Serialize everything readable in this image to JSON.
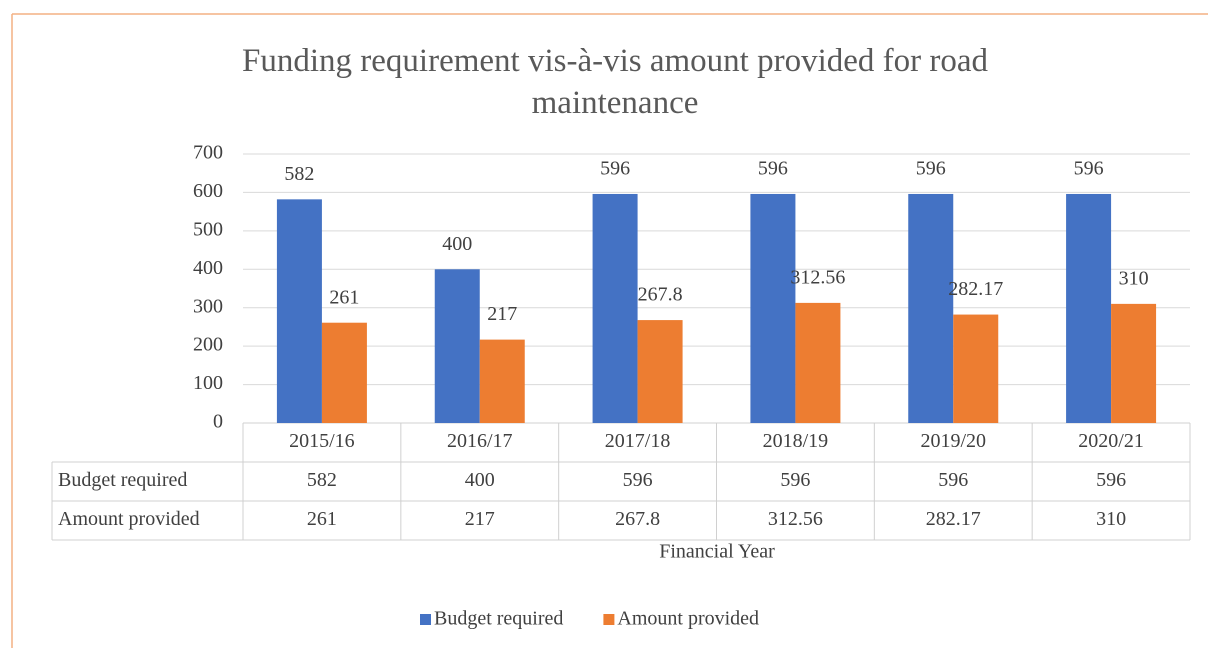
{
  "chart_data": {
    "type": "bar",
    "title": "Funding requirement vis-à-vis amount provided for road maintenance",
    "x_label": "Financial Year",
    "categories": [
      "2015/16",
      "2016/17",
      "2017/18",
      "2018/19",
      "2019/20",
      "2020/21"
    ],
    "series": [
      {
        "name": "Budget required",
        "color": "#4472c4",
        "values": [
          582,
          400,
          596,
          596,
          596,
          596
        ]
      },
      {
        "name": "Amount provided",
        "color": "#ed7d31",
        "values": [
          261,
          217,
          267.8,
          312.56,
          282.17,
          310
        ]
      }
    ],
    "ylim": [
      0,
      700
    ],
    "yticks": [
      0,
      100,
      200,
      300,
      400,
      500,
      600,
      700
    ],
    "grid": true,
    "legend": "bottom"
  }
}
